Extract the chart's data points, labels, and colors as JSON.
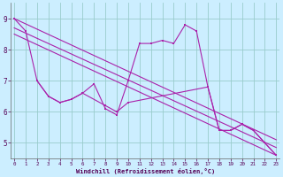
{
  "xlabel": "Windchill (Refroidissement éolien,°C)",
  "background_color": "#cceeff",
  "line_color": "#aa22aa",
  "grid_color": "#99cccc",
  "main_x": [
    0,
    1,
    2,
    3,
    4,
    5,
    6,
    7,
    8,
    9,
    10,
    11,
    12,
    13,
    14,
    15,
    16,
    17,
    18,
    19,
    20,
    21,
    22,
    23
  ],
  "main_y": [
    9.0,
    8.6,
    7.0,
    6.5,
    6.3,
    6.4,
    6.6,
    6.9,
    6.1,
    5.9,
    7.0,
    8.2,
    8.2,
    8.3,
    8.2,
    8.8,
    8.6,
    6.8,
    5.4,
    5.4,
    5.6,
    5.4,
    5.0,
    4.6
  ],
  "sub_x": [
    2,
    3,
    4,
    5,
    6,
    8,
    9,
    10,
    17,
    18,
    19,
    20,
    21,
    22,
    23
  ],
  "sub_y": [
    7.0,
    6.5,
    6.3,
    6.4,
    6.6,
    6.2,
    6.0,
    6.3,
    6.8,
    5.4,
    5.4,
    5.6,
    5.4,
    5.0,
    4.6
  ],
  "trend1_x": [
    0,
    23
  ],
  "trend1_y": [
    9.0,
    5.1
  ],
  "trend2_x": [
    0,
    23
  ],
  "trend2_y": [
    8.7,
    4.85
  ],
  "trend3_x": [
    0,
    23
  ],
  "trend3_y": [
    8.5,
    4.6
  ],
  "ylim": [
    4.5,
    9.5
  ],
  "xlim": [
    -0.3,
    23.3
  ],
  "yticks": [
    5,
    6,
    7,
    8,
    9
  ],
  "xticks": [
    0,
    1,
    2,
    3,
    4,
    5,
    6,
    7,
    8,
    9,
    10,
    11,
    12,
    13,
    14,
    15,
    16,
    17,
    18,
    19,
    20,
    21,
    22,
    23
  ]
}
